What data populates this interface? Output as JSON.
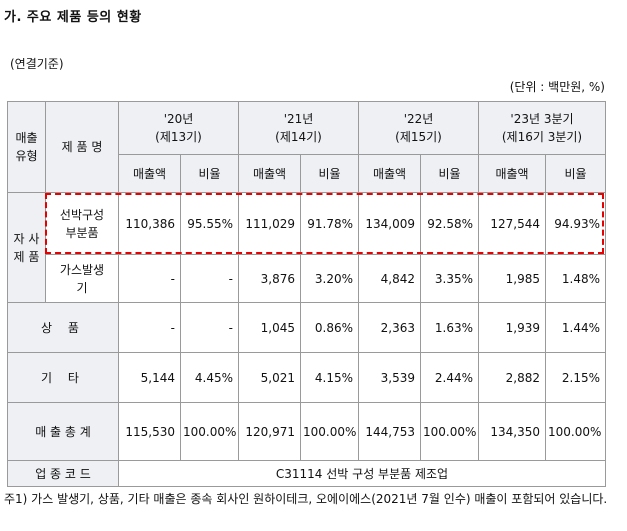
{
  "title": "가. 주요 제품 등의 현황",
  "basis": "(연결기준)",
  "unit": "(단위 : 백만원, %)",
  "table": {
    "col_type": "매출\n유형",
    "col_product": "제 품 명",
    "periods": [
      {
        "year": "'20년",
        "period": "(제13기)"
      },
      {
        "year": "'21년",
        "period": "(제14기)"
      },
      {
        "year": "'22년",
        "period": "(제15기)"
      },
      {
        "year": "'23년 3분기",
        "period": "(제16기 3분기)"
      }
    ],
    "sub_sales": "매출액",
    "sub_ratio": "비율",
    "group_own": "자 사\n제 품",
    "rows": {
      "ship": {
        "name": "선박구성\n부분품",
        "values": [
          "110,386",
          "95.55%",
          "111,029",
          "91.78%",
          "134,009",
          "92.58%",
          "127,544",
          "94.93%"
        ]
      },
      "gas": {
        "name": "가스발생\n기",
        "values": [
          "-",
          "-",
          "3,876",
          "3.20%",
          "4,842",
          "3.35%",
          "1,985",
          "1.48%"
        ]
      },
      "goods": {
        "name": "상 품",
        "values": [
          "-",
          "-",
          "1,045",
          "0.86%",
          "2,363",
          "1.63%",
          "1,939",
          "1.44%"
        ]
      },
      "other": {
        "name": "기 타",
        "values": [
          "5,144",
          "4.45%",
          "5,021",
          "4.15%",
          "3,539",
          "2.44%",
          "2,882",
          "2.15%"
        ]
      },
      "total": {
        "name": "매 출 총 계",
        "values": [
          "115,530",
          "100.00%",
          "120,971",
          "100.00%",
          "144,753",
          "100.00%",
          "134,350",
          "100.00%"
        ]
      }
    },
    "industry_label": "업 종 코 드",
    "industry_value": "C31114 선박 구성 부분품 제조업"
  },
  "footnote": "주1) 가스 발생기, 상품, 기타 매출은 종속 회사인 원하이테크, 오에이에스(2021년 7월 인수) 매출이 포함되어 있습니다."
}
